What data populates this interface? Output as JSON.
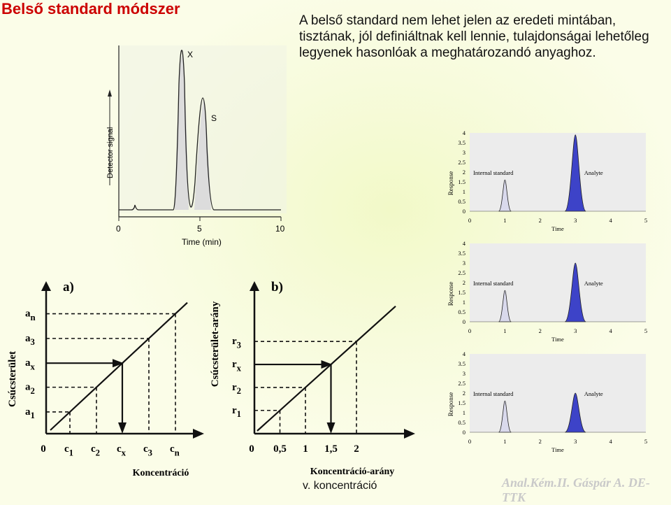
{
  "slide": {
    "title": "Belső standard módszer",
    "intro": "A belső standard nem lehet jelen az eredeti mintában, tisztának, jól definiáltnak kell lennie, tulajdonságai lehetőleg legyenek hasonlóak a meghatározandó anyaghoz.",
    "footer_left": "v. koncentráció",
    "footer_right": "Anal.Kém.II. Gáspár A. DE-TTK"
  },
  "chromatogram": {
    "ylabel": "Detector signal",
    "xlabel": "Time (min)",
    "ticks": [
      "0",
      "5",
      "10"
    ],
    "peak_x_label": "X",
    "peak_s_label": "S"
  },
  "small_chromatograms": [
    {
      "ylabel": "Response",
      "xlabel": "Time",
      "yticks": [
        "0",
        "0.5",
        "1",
        "1.5",
        "2",
        "2.5",
        "3",
        "3.5",
        "4"
      ],
      "xticks": [
        "0",
        "1",
        "2",
        "3",
        "4",
        "5"
      ],
      "internal_label": "Internal standard",
      "analyte_label": "Analyte",
      "internal_height": 1.6,
      "analyte_height": 3.9
    },
    {
      "ylabel": "Response",
      "xlabel": "Time",
      "yticks": [
        "0",
        "0.5",
        "1",
        "1.5",
        "2",
        "2.5",
        "3",
        "3.5",
        "4"
      ],
      "xticks": [
        "0",
        "1",
        "2",
        "3",
        "4",
        "5"
      ],
      "internal_label": "Internal standard",
      "analyte_label": "Analyte",
      "internal_height": 1.6,
      "analyte_height": 3.0
    },
    {
      "ylabel": "Response",
      "xlabel": "Time",
      "yticks": [
        "0",
        "0.5",
        "1",
        "1.5",
        "2",
        "2.5",
        "3",
        "3.5",
        "4"
      ],
      "xticks": [
        "0",
        "1",
        "2",
        "3",
        "4",
        "5"
      ],
      "internal_label": "Internal standard",
      "analyte_label": "Analyte",
      "internal_height": 1.6,
      "analyte_height": 2.0
    }
  ],
  "calib_a": {
    "panel_label": "a)",
    "ylabel": "Csúcsterület",
    "xlabel": "Koncentráció",
    "origin": "0",
    "y_labels": [
      {
        "main": "a",
        "sub": "1"
      },
      {
        "main": "a",
        "sub": "2"
      },
      {
        "main": "a",
        "sub": "x"
      },
      {
        "main": "a",
        "sub": "3"
      },
      {
        "main": "a",
        "sub": "n"
      }
    ],
    "x_labels": [
      {
        "main": "c",
        "sub": "1"
      },
      {
        "main": "c",
        "sub": "2"
      },
      {
        "main": "c",
        "sub": "x"
      },
      {
        "main": "c",
        "sub": "3"
      },
      {
        "main": "c",
        "sub": "n"
      }
    ]
  },
  "calib_b": {
    "panel_label": "b)",
    "ylabel": "Csúcsterület-arány",
    "xlabel": "Koncentráció-arány",
    "origin": "0",
    "y_labels": [
      {
        "main": "r",
        "sub": "1"
      },
      {
        "main": "r",
        "sub": "2"
      },
      {
        "main": "r",
        "sub": "x"
      },
      {
        "main": "r",
        "sub": "3"
      }
    ],
    "x_labels": [
      "0,5",
      "1",
      "1,5",
      "2"
    ]
  },
  "colors": {
    "title": "#cc0000",
    "analyte_fill": "#3d43c8",
    "internal_fill": "#d9d9ec",
    "panel_bg": "#ececec",
    "footer_watermark": "#c9c9c9"
  }
}
